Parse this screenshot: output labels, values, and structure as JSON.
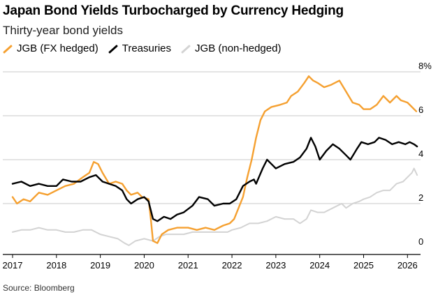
{
  "title": "Japan Bond Yields Turbocharged by Currency Hedging",
  "subtitle": "Thirty-year bond yields",
  "source": "Source: Bloomberg",
  "colors": {
    "hedged": "#f5a030",
    "treasuries": "#000000",
    "nonhedged": "#d3d3d3",
    "grid": "#c8c8c8"
  },
  "legend": [
    {
      "label": "JGB (FX hedged)",
      "color": "#f5a030"
    },
    {
      "label": "Treasuries",
      "color": "#000000"
    },
    {
      "label": "JGB (non-hedged)",
      "color": "#d3d3d3"
    }
  ],
  "chart_data": {
    "type": "line",
    "title": "Japan Bond Yields Turbocharged by Currency Hedging",
    "subtitle": "Thirty-year bond yields",
    "xlabel": "",
    "ylabel": "",
    "ylim": [
      0,
      8
    ],
    "xlim": [
      2017.0,
      2026.25
    ],
    "x_ticks": [
      2017,
      2018,
      2019,
      2020,
      2021,
      2022,
      2023,
      2024,
      2025,
      2026
    ],
    "x_tick_labels": [
      "2017",
      "2018",
      "2019",
      "2020",
      "2021",
      "2022",
      "2023",
      "2024",
      "2025",
      "2026"
    ],
    "y_ticks": [
      0,
      2,
      4,
      6,
      8
    ],
    "y_tick_labels": [
      "0",
      "2",
      "4",
      "6",
      "8%"
    ],
    "grid": true,
    "legend_position": "top-left",
    "series": [
      {
        "name": "JGB (FX hedged)",
        "color": "#f5a030",
        "points": [
          [
            2017.0,
            2.3
          ],
          [
            2017.1,
            2.0
          ],
          [
            2017.25,
            2.2
          ],
          [
            2017.4,
            2.1
          ],
          [
            2017.6,
            2.5
          ],
          [
            2017.8,
            2.4
          ],
          [
            2018.0,
            2.6
          ],
          [
            2018.2,
            2.8
          ],
          [
            2018.4,
            2.9
          ],
          [
            2018.6,
            3.2
          ],
          [
            2018.75,
            3.4
          ],
          [
            2018.85,
            3.9
          ],
          [
            2018.95,
            3.8
          ],
          [
            2019.05,
            3.4
          ],
          [
            2019.2,
            2.9
          ],
          [
            2019.35,
            3.0
          ],
          [
            2019.5,
            2.9
          ],
          [
            2019.6,
            2.6
          ],
          [
            2019.7,
            2.4
          ],
          [
            2019.85,
            2.5
          ],
          [
            2019.95,
            2.3
          ],
          [
            2020.1,
            2.2
          ],
          [
            2020.15,
            1.3
          ],
          [
            2020.2,
            0.3
          ],
          [
            2020.3,
            0.2
          ],
          [
            2020.4,
            0.6
          ],
          [
            2020.55,
            0.8
          ],
          [
            2020.75,
            0.9
          ],
          [
            2021.0,
            0.9
          ],
          [
            2021.2,
            0.8
          ],
          [
            2021.4,
            0.9
          ],
          [
            2021.6,
            0.8
          ],
          [
            2021.8,
            1.0
          ],
          [
            2021.95,
            1.1
          ],
          [
            2022.05,
            1.3
          ],
          [
            2022.15,
            1.8
          ],
          [
            2022.25,
            2.3
          ],
          [
            2022.35,
            3.2
          ],
          [
            2022.45,
            4.0
          ],
          [
            2022.55,
            5.0
          ],
          [
            2022.65,
            5.8
          ],
          [
            2022.75,
            6.2
          ],
          [
            2022.9,
            6.4
          ],
          [
            2023.1,
            6.5
          ],
          [
            2023.25,
            6.6
          ],
          [
            2023.35,
            6.9
          ],
          [
            2023.5,
            7.1
          ],
          [
            2023.65,
            7.5
          ],
          [
            2023.75,
            7.8
          ],
          [
            2023.85,
            7.6
          ],
          [
            2023.95,
            7.5
          ],
          [
            2024.1,
            7.3
          ],
          [
            2024.25,
            7.4
          ],
          [
            2024.45,
            7.6
          ],
          [
            2024.6,
            7.1
          ],
          [
            2024.75,
            6.6
          ],
          [
            2024.9,
            6.5
          ],
          [
            2025.0,
            6.3
          ],
          [
            2025.15,
            6.3
          ],
          [
            2025.3,
            6.5
          ],
          [
            2025.45,
            6.9
          ],
          [
            2025.6,
            6.6
          ],
          [
            2025.75,
            6.9
          ],
          [
            2025.85,
            6.7
          ],
          [
            2026.0,
            6.6
          ],
          [
            2026.1,
            6.4
          ],
          [
            2026.2,
            6.2
          ]
        ]
      },
      {
        "name": "Treasuries",
        "color": "#000000",
        "points": [
          [
            2017.0,
            2.9
          ],
          [
            2017.2,
            3.0
          ],
          [
            2017.4,
            2.8
          ],
          [
            2017.6,
            2.9
          ],
          [
            2017.8,
            2.8
          ],
          [
            2018.0,
            2.8
          ],
          [
            2018.15,
            3.1
          ],
          [
            2018.35,
            3.0
          ],
          [
            2018.55,
            3.0
          ],
          [
            2018.75,
            3.2
          ],
          [
            2018.9,
            3.3
          ],
          [
            2019.05,
            3.0
          ],
          [
            2019.2,
            2.9
          ],
          [
            2019.35,
            2.8
          ],
          [
            2019.5,
            2.6
          ],
          [
            2019.6,
            2.2
          ],
          [
            2019.7,
            2.0
          ],
          [
            2019.85,
            2.2
          ],
          [
            2020.0,
            2.3
          ],
          [
            2020.1,
            2.1
          ],
          [
            2020.2,
            1.3
          ],
          [
            2020.3,
            1.2
          ],
          [
            2020.45,
            1.4
          ],
          [
            2020.6,
            1.3
          ],
          [
            2020.75,
            1.5
          ],
          [
            2020.9,
            1.6
          ],
          [
            2021.1,
            1.9
          ],
          [
            2021.25,
            2.3
          ],
          [
            2021.45,
            2.2
          ],
          [
            2021.6,
            1.9
          ],
          [
            2021.8,
            2.0
          ],
          [
            2021.95,
            2.0
          ],
          [
            2022.1,
            2.2
          ],
          [
            2022.25,
            2.8
          ],
          [
            2022.4,
            3.0
          ],
          [
            2022.5,
            3.1
          ],
          [
            2022.55,
            2.9
          ],
          [
            2022.7,
            3.6
          ],
          [
            2022.8,
            4.0
          ],
          [
            2022.9,
            3.8
          ],
          [
            2023.0,
            3.6
          ],
          [
            2023.2,
            3.8
          ],
          [
            2023.4,
            3.9
          ],
          [
            2023.55,
            4.1
          ],
          [
            2023.7,
            4.5
          ],
          [
            2023.8,
            5.0
          ],
          [
            2023.9,
            4.6
          ],
          [
            2024.0,
            4.0
          ],
          [
            2024.15,
            4.4
          ],
          [
            2024.3,
            4.7
          ],
          [
            2024.45,
            4.5
          ],
          [
            2024.6,
            4.2
          ],
          [
            2024.7,
            4.0
          ],
          [
            2024.85,
            4.5
          ],
          [
            2024.95,
            4.8
          ],
          [
            2025.1,
            4.7
          ],
          [
            2025.25,
            4.8
          ],
          [
            2025.35,
            5.0
          ],
          [
            2025.5,
            4.9
          ],
          [
            2025.65,
            4.7
          ],
          [
            2025.8,
            4.8
          ],
          [
            2025.95,
            4.7
          ],
          [
            2026.05,
            4.8
          ],
          [
            2026.15,
            4.7
          ],
          [
            2026.22,
            4.6
          ]
        ]
      },
      {
        "name": "JGB (non-hedged)",
        "color": "#d3d3d3",
        "points": [
          [
            2017.0,
            0.7
          ],
          [
            2017.2,
            0.8
          ],
          [
            2017.4,
            0.8
          ],
          [
            2017.6,
            0.9
          ],
          [
            2017.8,
            0.8
          ],
          [
            2018.0,
            0.8
          ],
          [
            2018.2,
            0.7
          ],
          [
            2018.4,
            0.7
          ],
          [
            2018.6,
            0.8
          ],
          [
            2018.8,
            0.8
          ],
          [
            2019.0,
            0.6
          ],
          [
            2019.2,
            0.5
          ],
          [
            2019.4,
            0.4
          ],
          [
            2019.55,
            0.2
          ],
          [
            2019.65,
            0.1
          ],
          [
            2019.8,
            0.3
          ],
          [
            2020.0,
            0.4
          ],
          [
            2020.2,
            0.3
          ],
          [
            2020.35,
            0.5
          ],
          [
            2020.5,
            0.6
          ],
          [
            2020.7,
            0.6
          ],
          [
            2020.9,
            0.6
          ],
          [
            2021.1,
            0.7
          ],
          [
            2021.3,
            0.7
          ],
          [
            2021.5,
            0.7
          ],
          [
            2021.7,
            0.7
          ],
          [
            2021.9,
            0.7
          ],
          [
            2022.0,
            0.8
          ],
          [
            2022.2,
            0.9
          ],
          [
            2022.4,
            1.1
          ],
          [
            2022.6,
            1.1
          ],
          [
            2022.8,
            1.2
          ],
          [
            2023.0,
            1.4
          ],
          [
            2023.2,
            1.3
          ],
          [
            2023.4,
            1.3
          ],
          [
            2023.55,
            1.1
          ],
          [
            2023.7,
            1.3
          ],
          [
            2023.8,
            1.7
          ],
          [
            2023.95,
            1.6
          ],
          [
            2024.1,
            1.6
          ],
          [
            2024.3,
            1.8
          ],
          [
            2024.5,
            2.0
          ],
          [
            2024.6,
            1.8
          ],
          [
            2024.75,
            2.0
          ],
          [
            2024.9,
            2.1
          ],
          [
            2025.0,
            2.2
          ],
          [
            2025.15,
            2.3
          ],
          [
            2025.3,
            2.5
          ],
          [
            2025.45,
            2.6
          ],
          [
            2025.6,
            2.6
          ],
          [
            2025.75,
            2.9
          ],
          [
            2025.9,
            3.0
          ],
          [
            2026.0,
            3.2
          ],
          [
            2026.1,
            3.4
          ],
          [
            2026.15,
            3.6
          ],
          [
            2026.22,
            3.3
          ]
        ]
      }
    ]
  }
}
